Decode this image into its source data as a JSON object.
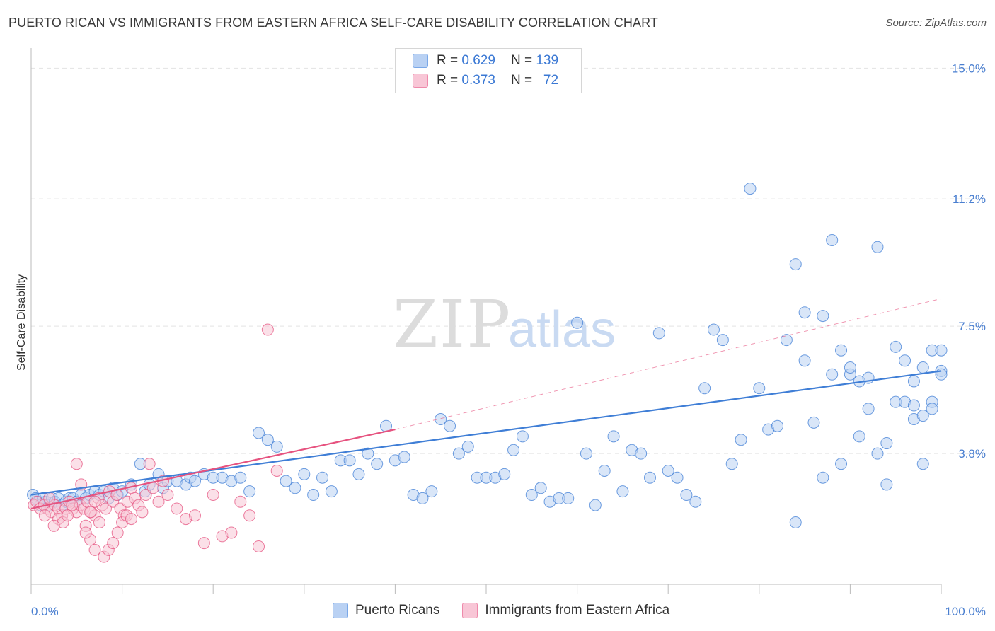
{
  "title": "PUERTO RICAN VS IMMIGRANTS FROM EASTERN AFRICA SELF-CARE DISABILITY CORRELATION CHART",
  "source": "Source: ZipAtlas.com",
  "watermark": {
    "zip": "ZIP",
    "atlas": "atlas"
  },
  "legend": {
    "r_label": "R =",
    "n_label": "N =",
    "series": [
      {
        "name": "Puerto Ricans",
        "r": "0.629",
        "n": "139",
        "color": "#7aa8e8",
        "fill": "#b9d1f3"
      },
      {
        "name": "Immigrants from Eastern Africa",
        "r": "0.373",
        "n": "72",
        "color": "#ee8aab",
        "fill": "#f8c6d6"
      }
    ]
  },
  "chart_data": {
    "type": "scatter",
    "xlabel": "",
    "ylabel": "Self-Care Disability",
    "xlim": [
      0,
      100
    ],
    "ylim": [
      0,
      15.5
    ],
    "x_tick_labels": [
      "0.0%",
      "100.0%"
    ],
    "y_ticks": [
      3.8,
      7.5,
      11.2,
      15.0
    ],
    "y_tick_labels": [
      "3.8%",
      "7.5%",
      "11.2%",
      "15.0%"
    ],
    "grid": true,
    "series": [
      {
        "name": "Puerto Ricans",
        "color": "#3f7ed6",
        "fill": "#b9d1f3",
        "points": [
          [
            0.2,
            2.6
          ],
          [
            0.5,
            2.5
          ],
          [
            0.8,
            2.4
          ],
          [
            1,
            2.3
          ],
          [
            1.3,
            2.5
          ],
          [
            1.6,
            2.4
          ],
          [
            2,
            2.3
          ],
          [
            2.3,
            2.5
          ],
          [
            2.6,
            2.4
          ],
          [
            3,
            2.5
          ],
          [
            3.4,
            2.3
          ],
          [
            3.8,
            2.4
          ],
          [
            4.2,
            2.5
          ],
          [
            4.6,
            2.5
          ],
          [
            5,
            2.4
          ],
          [
            5.5,
            2.6
          ],
          [
            6,
            2.5
          ],
          [
            6.4,
            2.6
          ],
          [
            7,
            2.7
          ],
          [
            7.5,
            2.6
          ],
          [
            8,
            2.7
          ],
          [
            8.5,
            2.5
          ],
          [
            9,
            2.8
          ],
          [
            9.5,
            2.6
          ],
          [
            10,
            2.7
          ],
          [
            11,
            2.9
          ],
          [
            12,
            3.5
          ],
          [
            12.5,
            2.7
          ],
          [
            13,
            2.9
          ],
          [
            14,
            3.2
          ],
          [
            14.5,
            2.8
          ],
          [
            15,
            3.0
          ],
          [
            16,
            3.0
          ],
          [
            17,
            2.9
          ],
          [
            17.5,
            3.1
          ],
          [
            18,
            3.0
          ],
          [
            19,
            3.2
          ],
          [
            20,
            3.1
          ],
          [
            21,
            3.1
          ],
          [
            22,
            3.0
          ],
          [
            23,
            3.1
          ],
          [
            24,
            2.7
          ],
          [
            25,
            4.4
          ],
          [
            26,
            4.2
          ],
          [
            27,
            4.0
          ],
          [
            28,
            3.0
          ],
          [
            29,
            2.8
          ],
          [
            30,
            3.2
          ],
          [
            31,
            2.6
          ],
          [
            32,
            3.1
          ],
          [
            33,
            2.7
          ],
          [
            34,
            3.6
          ],
          [
            35,
            3.6
          ],
          [
            36,
            3.2
          ],
          [
            37,
            3.8
          ],
          [
            38,
            3.5
          ],
          [
            39,
            4.6
          ],
          [
            40,
            3.6
          ],
          [
            41,
            3.7
          ],
          [
            42,
            2.6
          ],
          [
            43,
            2.5
          ],
          [
            44,
            2.7
          ],
          [
            45,
            4.8
          ],
          [
            46,
            4.6
          ],
          [
            47,
            3.8
          ],
          [
            48,
            4.0
          ],
          [
            49,
            3.1
          ],
          [
            50,
            3.1
          ],
          [
            51,
            3.1
          ],
          [
            52,
            3.2
          ],
          [
            53,
            3.9
          ],
          [
            54,
            4.3
          ],
          [
            55,
            2.6
          ],
          [
            56,
            2.8
          ],
          [
            57,
            2.4
          ],
          [
            58,
            2.5
          ],
          [
            59,
            2.5
          ],
          [
            60,
            7.6
          ],
          [
            61,
            3.8
          ],
          [
            62,
            2.3
          ],
          [
            63,
            3.3
          ],
          [
            64,
            4.3
          ],
          [
            65,
            2.7
          ],
          [
            66,
            3.9
          ],
          [
            67,
            3.8
          ],
          [
            68,
            3.1
          ],
          [
            69,
            7.3
          ],
          [
            70,
            3.3
          ],
          [
            71,
            3.1
          ],
          [
            72,
            2.6
          ],
          [
            73,
            2.4
          ],
          [
            74,
            5.7
          ],
          [
            75,
            7.4
          ],
          [
            76,
            7.1
          ],
          [
            77,
            3.5
          ],
          [
            78,
            4.2
          ],
          [
            79,
            11.5
          ],
          [
            80,
            5.7
          ],
          [
            81,
            4.5
          ],
          [
            82,
            4.6
          ],
          [
            83,
            7.1
          ],
          [
            84,
            9.3
          ],
          [
            85,
            7.9
          ],
          [
            86,
            4.7
          ],
          [
            87,
            7.8
          ],
          [
            88,
            10.0
          ],
          [
            89,
            6.8
          ],
          [
            90,
            6.1
          ],
          [
            91,
            5.9
          ],
          [
            92,
            6.0
          ],
          [
            93,
            3.8
          ],
          [
            94,
            4.1
          ],
          [
            95,
            5.3
          ],
          [
            96,
            5.3
          ],
          [
            97,
            5.2
          ],
          [
            98,
            3.5
          ],
          [
            99,
            6.8
          ],
          [
            100,
            6.8
          ],
          [
            84,
            1.8
          ],
          [
            85,
            6.5
          ],
          [
            87,
            3.1
          ],
          [
            88,
            6.1
          ],
          [
            89,
            3.5
          ],
          [
            90,
            6.3
          ],
          [
            91,
            4.3
          ],
          [
            92,
            5.1
          ],
          [
            93,
            9.8
          ],
          [
            94,
            2.9
          ],
          [
            95,
            6.9
          ],
          [
            96,
            6.5
          ],
          [
            97,
            5.9
          ],
          [
            98,
            6.3
          ],
          [
            99,
            5.3
          ],
          [
            100,
            6.2
          ],
          [
            97,
            4.8
          ],
          [
            98,
            4.9
          ],
          [
            99,
            5.1
          ],
          [
            100,
            6.1
          ]
        ]
      },
      {
        "name": "Immigrants from Eastern Africa",
        "color": "#e6527f",
        "fill": "#f8c6d6",
        "points": [
          [
            0.3,
            2.3
          ],
          [
            0.6,
            2.4
          ],
          [
            1,
            2.2
          ],
          [
            1.4,
            2.3
          ],
          [
            1.8,
            2.2
          ],
          [
            2.2,
            2.1
          ],
          [
            2.6,
            2.3
          ],
          [
            3,
            2.2
          ],
          [
            3.4,
            2.0
          ],
          [
            3.8,
            2.2
          ],
          [
            4.2,
            2.4
          ],
          [
            4.6,
            2.2
          ],
          [
            5,
            2.1
          ],
          [
            5.4,
            2.3
          ],
          [
            5.8,
            2.2
          ],
          [
            6.2,
            2.4
          ],
          [
            6.6,
            2.1
          ],
          [
            7,
            2.0
          ],
          [
            7.4,
            2.5
          ],
          [
            7.8,
            2.3
          ],
          [
            8.2,
            2.2
          ],
          [
            8.6,
            2.7
          ],
          [
            9,
            2.4
          ],
          [
            9.4,
            2.6
          ],
          [
            9.8,
            2.2
          ],
          [
            10.2,
            2.0
          ],
          [
            10.6,
            2.4
          ],
          [
            11,
            2.8
          ],
          [
            11.4,
            2.5
          ],
          [
            11.8,
            2.3
          ],
          [
            12.2,
            2.1
          ],
          [
            12.6,
            2.6
          ],
          [
            13,
            3.5
          ],
          [
            13.4,
            2.8
          ],
          [
            14,
            2.4
          ],
          [
            14.5,
            3.0
          ],
          [
            15,
            2.6
          ],
          [
            16,
            2.2
          ],
          [
            17,
            1.9
          ],
          [
            18,
            2.0
          ],
          [
            19,
            1.2
          ],
          [
            20,
            2.6
          ],
          [
            21,
            1.4
          ],
          [
            22,
            1.5
          ],
          [
            23,
            2.4
          ],
          [
            24,
            2.0
          ],
          [
            25,
            1.1
          ],
          [
            26,
            7.4
          ],
          [
            27,
            3.3
          ],
          [
            6,
            1.7
          ],
          [
            6.5,
            1.3
          ],
          [
            7,
            1.0
          ],
          [
            7.5,
            1.8
          ],
          [
            8,
            0.8
          ],
          [
            8.5,
            1.0
          ],
          [
            9,
            1.2
          ],
          [
            9.5,
            1.5
          ],
          [
            10,
            1.8
          ],
          [
            10.5,
            2.0
          ],
          [
            11,
            1.9
          ],
          [
            5,
            3.5
          ],
          [
            5.5,
            2.9
          ],
          [
            6,
            1.5
          ],
          [
            6.5,
            2.1
          ],
          [
            7,
            2.4
          ],
          [
            3,
            1.9
          ],
          [
            3.5,
            1.8
          ],
          [
            4,
            2.0
          ],
          [
            4.5,
            2.3
          ],
          [
            2,
            2.5
          ],
          [
            2.5,
            1.7
          ],
          [
            1.5,
            2.0
          ]
        ]
      }
    ],
    "trend_lines": [
      {
        "series": "Puerto Ricans",
        "x": [
          0,
          100
        ],
        "y": [
          2.6,
          6.2
        ]
      },
      {
        "series": "Immigrants from Eastern Africa",
        "x": [
          0,
          40
        ],
        "y": [
          2.2,
          4.5
        ]
      },
      {
        "series": "Immigrants from Eastern Africa",
        "x": [
          40,
          100
        ],
        "y": [
          4.5,
          8.3
        ],
        "style": "dashed"
      }
    ]
  }
}
